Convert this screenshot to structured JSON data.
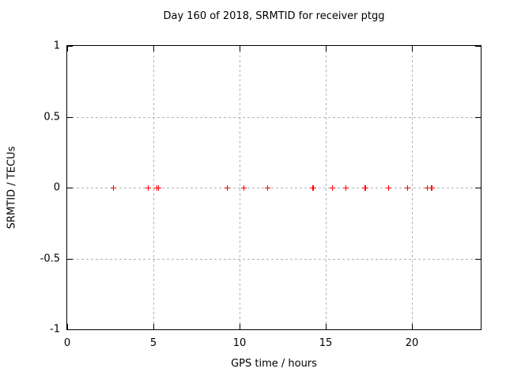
{
  "title": "Day 160 of 2018, SRMTID for receiver ptgg",
  "chart_data": {
    "type": "scatter",
    "title": "Day 160 of 2018, SRMTID for receiver ptgg",
    "xlabel": "GPS time / hours",
    "ylabel": "SRMTID / TECUs",
    "xlim": [
      0,
      24
    ],
    "ylim": [
      -1,
      1
    ],
    "xticks": [
      0,
      5,
      10,
      15,
      20
    ],
    "yticks": [
      -1,
      -0.5,
      0,
      0.5,
      1
    ],
    "grid": true,
    "legend": "none",
    "marker": "plus",
    "marker_color": "#ff0000",
    "grid_color": "#b4b4b4",
    "axis_color": "#000000",
    "background_color": "#ffffff",
    "series": [
      {
        "name": "SRMTID",
        "points": [
          {
            "x": 2.64,
            "y": 0
          },
          {
            "x": 4.66,
            "y": 0
          },
          {
            "x": 5.19,
            "y": 0
          },
          {
            "x": 5.26,
            "y": 0
          },
          {
            "x": 9.28,
            "y": 0
          },
          {
            "x": 10.25,
            "y": 0
          },
          {
            "x": 11.63,
            "y": 0
          },
          {
            "x": 14.22,
            "y": 0
          },
          {
            "x": 14.29,
            "y": 0
          },
          {
            "x": 15.36,
            "y": 0
          },
          {
            "x": 16.15,
            "y": 0
          },
          {
            "x": 17.24,
            "y": 0
          },
          {
            "x": 17.31,
            "y": 0
          },
          {
            "x": 18.64,
            "y": 0
          },
          {
            "x": 19.75,
            "y": 0
          },
          {
            "x": 20.86,
            "y": 0
          },
          {
            "x": 21.09,
            "y": 0
          },
          {
            "x": 21.16,
            "y": 0
          }
        ]
      }
    ]
  }
}
